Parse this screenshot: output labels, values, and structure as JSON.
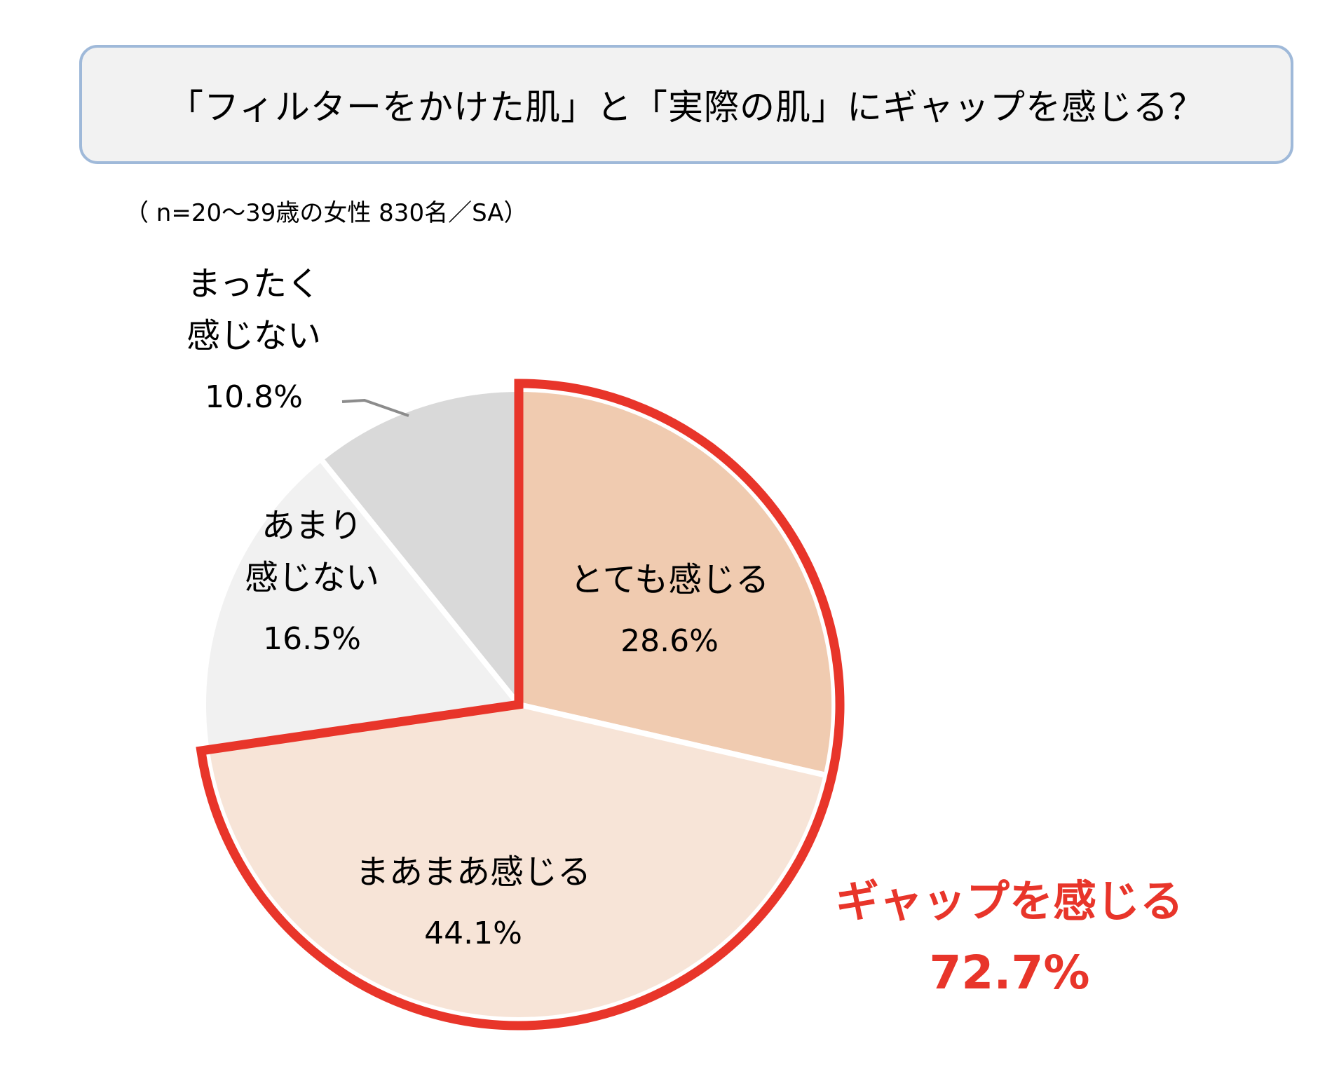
{
  "title": "「フィルターをかけた肌」と「実際の肌」にギャップを感じる？",
  "note": "（ n=20～39歳の女性 830名／SA）",
  "chart_data": {
    "type": "pie",
    "start": "12 o'clock",
    "direction": "clockwise",
    "slices": [
      {
        "label_lines": [
          "とても感じる"
        ],
        "value": 28.6,
        "value_label": "28.6%",
        "color": "#f0cbb0",
        "highlight": true
      },
      {
        "label_lines": [
          "まあまあ感じる"
        ],
        "value": 44.1,
        "value_label": "44.1%",
        "color": "#f7e4d7",
        "highlight": true
      },
      {
        "label_lines": [
          "あまり",
          "感じない"
        ],
        "value": 16.5,
        "value_label": "16.5%",
        "color": "#f1f1f1",
        "highlight": false
      },
      {
        "label_lines": [
          "まったく",
          "感じない"
        ],
        "value": 10.8,
        "value_label": "10.8%",
        "color": "#d9d9d9",
        "highlight": false
      }
    ],
    "callout": {
      "label": "ギャップを感じる",
      "value": 72.7,
      "value_label": "72.7%",
      "color": "#e8352a"
    },
    "highlight_color": "#e8352a",
    "leader_line_color": "#8c8c8c"
  }
}
